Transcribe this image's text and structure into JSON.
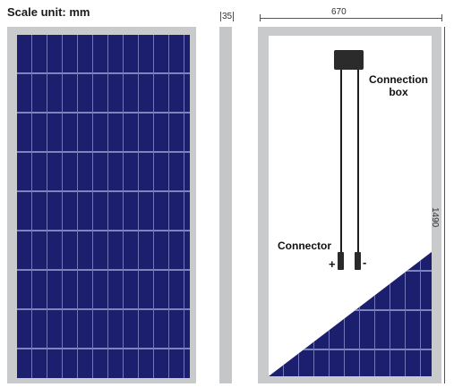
{
  "scale_label": "Scale unit: mm",
  "dimensions": {
    "thickness": "35",
    "width": "670",
    "height": "1490"
  },
  "labels": {
    "connection_box": "Connection box",
    "connector": "Connector",
    "positive": "+",
    "negative": "-"
  },
  "colors": {
    "cell_blue": "#1b1f6e",
    "cell_grid": "#6f77b5",
    "frame_gray": "#c9cacb"
  }
}
